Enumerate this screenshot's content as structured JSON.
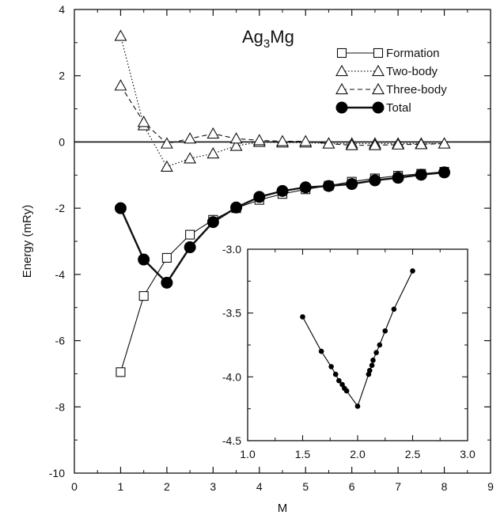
{
  "chart_data": [
    {
      "type": "line",
      "title_main": "Ag",
      "title_sub": "3",
      "title_end": "Mg",
      "xlabel": "M",
      "ylabel": "Energy (mRy)",
      "xlim": [
        0,
        9
      ],
      "ylim": [
        -10,
        4
      ],
      "xticks": [
        "0",
        "1",
        "2",
        "3",
        "4",
        "5",
        "6",
        "7",
        "8",
        "9"
      ],
      "yticks": [
        "4",
        "2",
        "0",
        "-2",
        "-4",
        "-6",
        "-8",
        "-10"
      ],
      "zero_line": true,
      "legend_position": "top-right",
      "series": [
        {
          "name": "Formation",
          "marker": "square-open",
          "line": "solid",
          "x": [
            1,
            1.5,
            2,
            2.5,
            3,
            3.5,
            4,
            4.5,
            5,
            5.5,
            6,
            6.5,
            7,
            7.5,
            8
          ],
          "y": [
            -6.95,
            -4.65,
            -3.5,
            -2.8,
            -2.35,
            -2.0,
            -1.75,
            -1.57,
            -1.43,
            -1.32,
            -1.2,
            -1.1,
            -1.02,
            -0.96,
            -0.9
          ]
        },
        {
          "name": "Two-body",
          "marker": "triangle-open",
          "line": "dotted",
          "x": [
            1,
            1.5,
            2,
            2.5,
            3,
            3.5,
            4,
            4.5,
            5,
            5.5,
            6,
            6.5,
            7,
            7.5,
            8
          ],
          "y": [
            3.2,
            0.5,
            -0.75,
            -0.5,
            -0.35,
            -0.12,
            0.0,
            -0.02,
            -0.02,
            -0.05,
            -0.05,
            -0.05,
            -0.05,
            -0.05,
            -0.05
          ]
        },
        {
          "name": "Three-body",
          "marker": "triangle-open",
          "line": "dashed",
          "x": [
            1,
            1.5,
            2,
            2.5,
            3,
            3.5,
            4,
            4.5,
            5,
            5.5,
            6,
            6.5,
            7,
            7.5,
            8
          ],
          "y": [
            1.7,
            0.6,
            -0.05,
            0.1,
            0.25,
            0.1,
            0.05,
            0.02,
            0.02,
            -0.05,
            -0.1,
            -0.1,
            -0.08,
            -0.07,
            -0.05
          ]
        },
        {
          "name": "Total",
          "marker": "circle-filled",
          "line": "solid-thick",
          "x": [
            1,
            1.5,
            2,
            2.5,
            3,
            3.5,
            4,
            4.5,
            5,
            5.5,
            6,
            6.5,
            7,
            7.5,
            8
          ],
          "y": [
            -2.0,
            -3.55,
            -4.25,
            -3.18,
            -2.42,
            -1.98,
            -1.66,
            -1.48,
            -1.37,
            -1.33,
            -1.27,
            -1.16,
            -1.08,
            -0.99,
            -0.92
          ]
        }
      ]
    },
    {
      "type": "scatter",
      "title": "",
      "xlabel": "",
      "ylabel": "",
      "xlim": [
        1.0,
        3.0
      ],
      "ylim": [
        -4.5,
        -3.0
      ],
      "xticks": [
        "1.0",
        "1.5",
        "2.0",
        "2.5",
        "3.0"
      ],
      "yticks": [
        "-3.0",
        "-3.5",
        "-4.0",
        "-4.5"
      ],
      "series": [
        {
          "marker": "circle-filled-small",
          "line": "solid",
          "x": [
            1.5,
            1.67,
            1.76,
            1.8,
            1.83,
            1.86,
            1.88,
            1.9,
            2.0,
            2.1,
            2.11,
            2.13,
            2.14,
            2.17,
            2.2,
            2.25,
            2.33,
            2.5
          ],
          "y": [
            -3.53,
            -3.8,
            -3.92,
            -3.98,
            -4.03,
            -4.06,
            -4.09,
            -4.11,
            -4.23,
            -3.98,
            -3.95,
            -3.91,
            -3.87,
            -3.81,
            -3.75,
            -3.64,
            -3.47,
            -3.17
          ]
        }
      ]
    }
  ]
}
